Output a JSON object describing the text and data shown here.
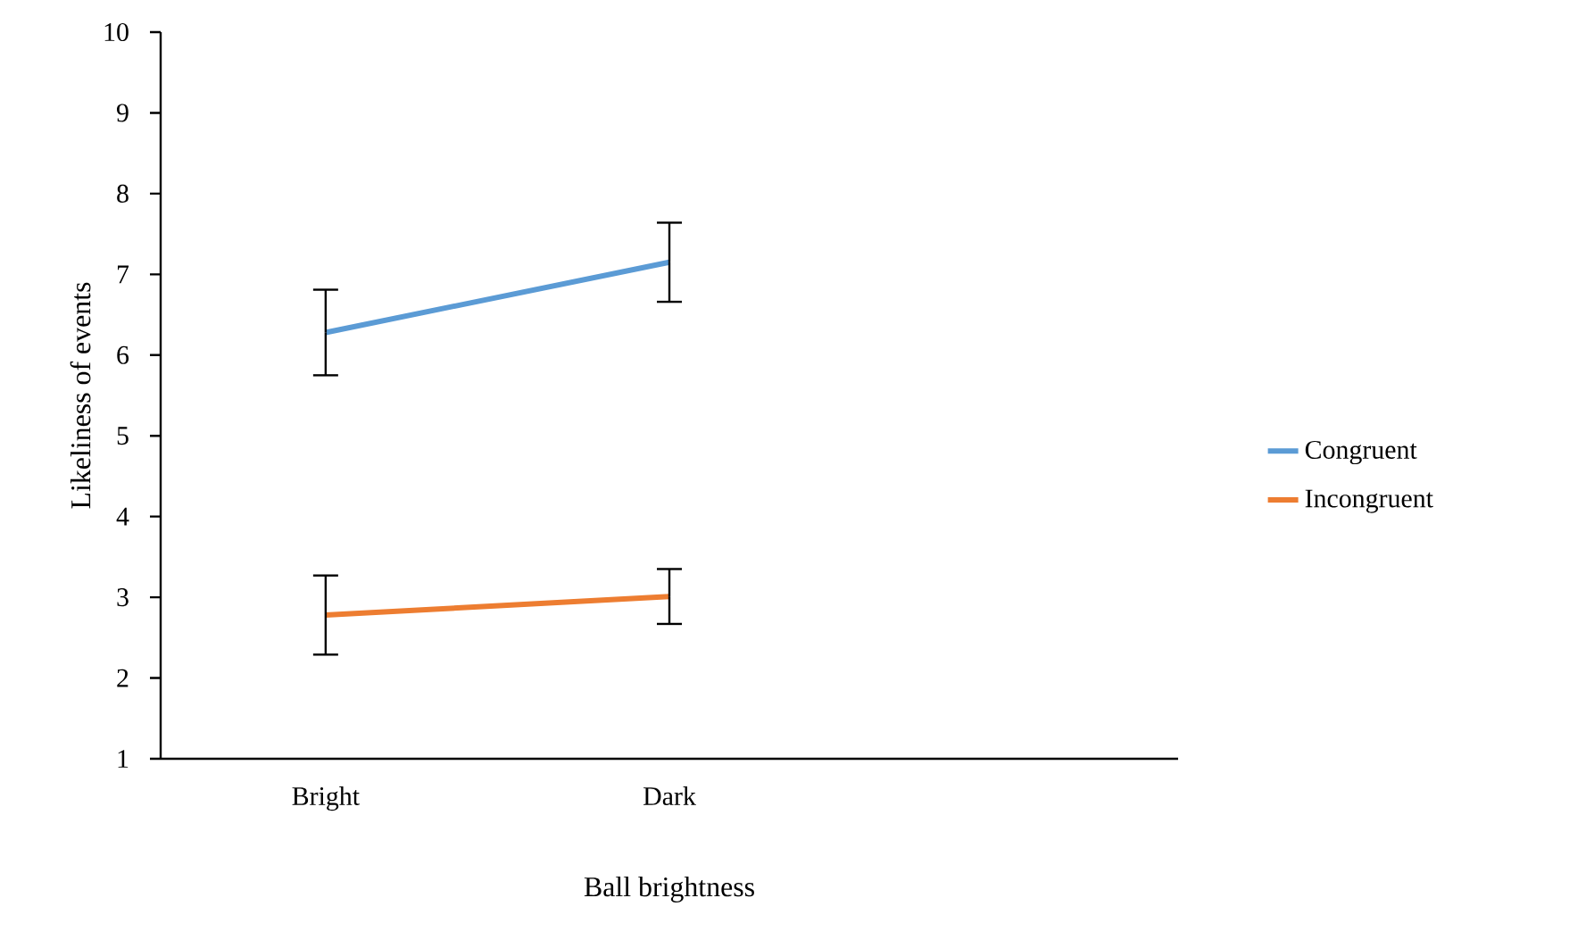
{
  "chart_data": {
    "type": "line",
    "xlabel": "Ball brightness",
    "ylabel": "Likeliness of events",
    "categories": [
      "Bright",
      "Dark"
    ],
    "series": [
      {
        "name": "Congruent",
        "color": "#5b9bd5",
        "values": [
          6.28,
          7.15
        ],
        "errors": [
          0.53,
          0.49
        ]
      },
      {
        "name": "Incongruent",
        "color": "#ed7d31",
        "values": [
          2.78,
          3.01
        ],
        "errors": [
          0.49,
          0.34
        ]
      }
    ],
    "ylim": [
      1,
      10
    ],
    "yticks": [
      1,
      2,
      3,
      4,
      5,
      6,
      7,
      8,
      9,
      10
    ],
    "legend": "right"
  }
}
